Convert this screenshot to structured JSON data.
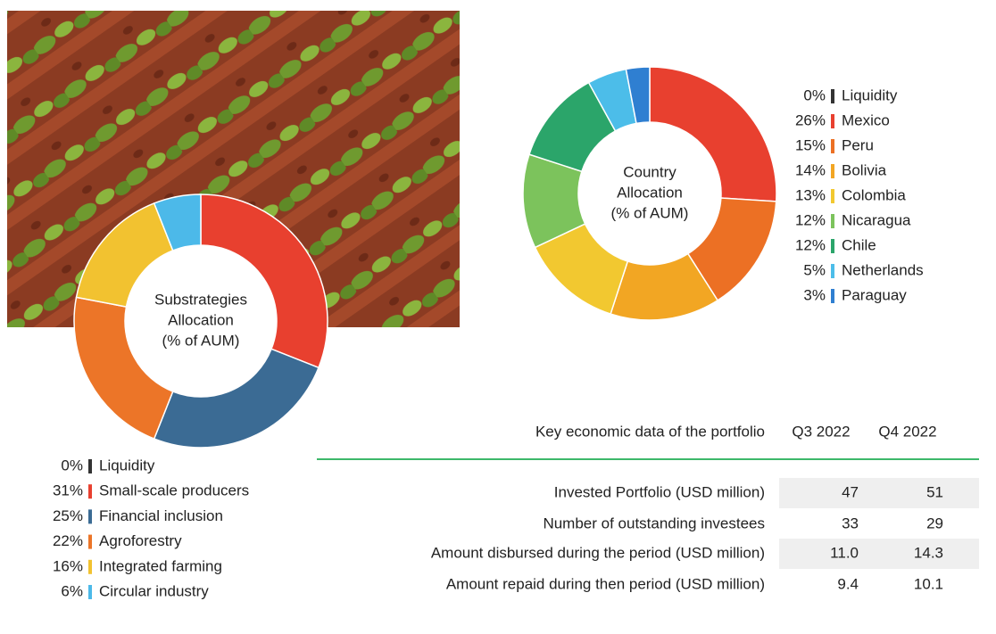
{
  "chart_data": [
    {
      "type": "donut",
      "title": [
        "Substrategies",
        "Allocation",
        "(% of AUM)"
      ],
      "categories": [
        "Liquidity",
        "Small-scale producers",
        "Financial inclusion",
        "Agroforestry",
        "Integrated farming",
        "Circular industry"
      ],
      "values": [
        0,
        31,
        25,
        22,
        16,
        6
      ],
      "value_labels": [
        "0%",
        "31%",
        "25%",
        "22%",
        "16%",
        "6%"
      ],
      "colors": [
        "#333333",
        "#e8402f",
        "#3b6b94",
        "#ec7528",
        "#f2c230",
        "#4cb9e9"
      ]
    },
    {
      "type": "donut",
      "title": [
        "Country",
        "Allocation",
        "(% of AUM)"
      ],
      "categories": [
        "Liquidity",
        "Mexico",
        "Peru",
        "Bolivia",
        "Colombia",
        "Nicaragua",
        "Chile",
        "Netherlands",
        "Paraguay"
      ],
      "values": [
        0,
        26,
        15,
        14,
        13,
        12,
        12,
        5,
        3
      ],
      "value_labels": [
        "0%",
        "26%",
        "15%",
        "14%",
        "13%",
        "12%",
        "12%",
        "5%",
        "3%"
      ],
      "colors": [
        "#333333",
        "#e8402f",
        "#ec7024",
        "#f2a623",
        "#f2c830",
        "#7cc35c",
        "#2ba56a",
        "#4cbde9",
        "#2f7fd1"
      ]
    }
  ],
  "table": {
    "header": [
      "Key economic data of the portfolio",
      "Q3 2022",
      "Q4 2022"
    ],
    "rows": [
      [
        "Invested Portfolio (USD million)",
        "47",
        "51"
      ],
      [
        "Number of outstanding investees",
        "33",
        "29"
      ],
      [
        "Amount disbursed during the period (USD million)",
        "11.0",
        "14.3"
      ],
      [
        "Amount repaid during then period (USD million)",
        "9.4",
        "10.1"
      ]
    ]
  }
}
